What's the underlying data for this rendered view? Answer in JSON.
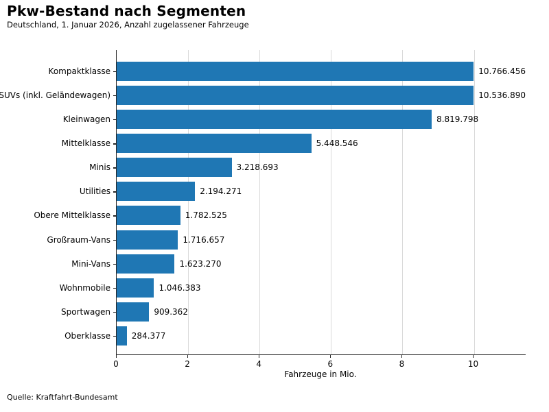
{
  "header": {
    "title": "Pkw-Bestand nach Segmenten",
    "subtitle": "Deutschland, 1. Januar 2026, Anzahl zugelassener Fahrzeuge"
  },
  "footer": {
    "source": "Quelle: Kraftfahrt-Bundesamt"
  },
  "chart_data": {
    "type": "bar",
    "orientation": "horizontal",
    "title": "Pkw-Bestand nach Segmenten",
    "subtitle": "Deutschland, 1. Januar 2026, Anzahl zugelassener Fahrzeuge",
    "xlabel": "Fahrzeuge in Mio.",
    "xlim": [
      0,
      11.45
    ],
    "xticks": [
      0,
      2,
      4,
      6,
      8,
      10
    ],
    "xtick_labels": [
      "0",
      "2",
      "4",
      "6",
      "8",
      "10"
    ],
    "grid": "vertical-light",
    "bar_color": "#1f77b4",
    "categories": [
      "Kompaktklasse",
      "SUVs (inkl. Geländewagen)",
      "Kleinwagen",
      "Mittelklasse",
      "Minis",
      "Utilities",
      "Obere Mittelklasse",
      "Großraum-Vans",
      "Mini-Vans",
      "Wohnmobile",
      "Sportwagen",
      "Oberklasse"
    ],
    "values": [
      10766456,
      10536890,
      8819798,
      5448546,
      3218693,
      2194271,
      1782525,
      1716657,
      1623270,
      1046383,
      909362,
      284377
    ],
    "display_values": [
      "10.766.456",
      "10.536.890",
      "8.819.798",
      "5.448.546",
      "3.218.693",
      "2.194.271",
      "1.782.525",
      "1.716.657",
      "1.623.270",
      "1.046.383",
      "909.362",
      "284.377"
    ],
    "source": "Quelle: Kraftfahrt-Bundesamt"
  }
}
